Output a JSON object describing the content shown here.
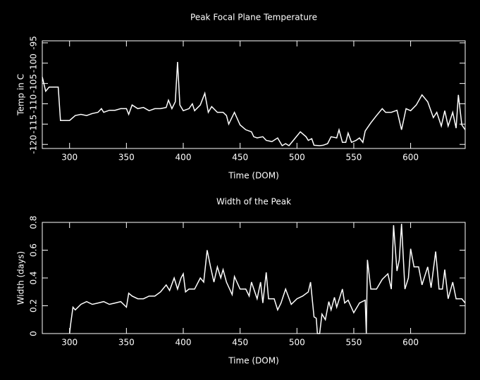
{
  "chart_data": [
    {
      "type": "line",
      "title": "Peak Focal Plane Temperature",
      "x_label": "Time (DOM)",
      "y_label": "Temp in C",
      "xlim": [
        276,
        648
      ],
      "ylim": [
        -121,
        -94.5
      ],
      "xticks": [
        300,
        350,
        400,
        450,
        500,
        550,
        600
      ],
      "yticks": [
        -120,
        -115,
        -110,
        -105,
        -100,
        -95
      ],
      "series": [
        {
          "color": "#ffffff",
          "x": [
            276,
            279,
            282,
            290,
            292,
            300,
            305,
            310,
            315,
            320,
            325,
            328,
            330,
            335,
            340,
            345,
            350,
            352,
            355,
            360,
            365,
            370,
            375,
            380,
            385,
            387,
            390,
            393,
            395,
            397,
            400,
            405,
            408,
            410,
            415,
            419,
            422,
            425,
            430,
            435,
            438,
            440,
            445,
            450,
            455,
            460,
            462,
            465,
            470,
            473,
            478,
            483,
            487,
            490,
            493,
            498,
            503,
            508,
            510,
            513,
            515,
            520,
            523,
            527,
            530,
            535,
            537,
            540,
            543,
            545,
            548,
            552,
            555,
            558,
            560,
            565,
            570,
            575,
            578,
            583,
            588,
            592,
            596,
            600,
            605,
            610,
            615,
            620,
            623,
            627,
            630,
            633,
            637,
            640,
            642,
            645,
            648
          ],
          "values": [
            -103.4,
            -106.9,
            -105.9,
            -105.9,
            -114.1,
            -114.1,
            -112.9,
            -112.6,
            -112.9,
            -112.4,
            -112.1,
            -111.2,
            -112.1,
            -111.6,
            -111.6,
            -111.2,
            -111.2,
            -112.6,
            -110.3,
            -111.2,
            -110.9,
            -111.7,
            -111.2,
            -111.2,
            -110.9,
            -109.1,
            -111.2,
            -109.5,
            -99.7,
            -110.3,
            -111.7,
            -111.2,
            -110.0,
            -111.7,
            -110.3,
            -107.4,
            -112.1,
            -110.7,
            -112.1,
            -112.1,
            -112.9,
            -115.0,
            -112.1,
            -115.2,
            -116.4,
            -116.9,
            -118.1,
            -118.4,
            -118.1,
            -119.0,
            -119.3,
            -118.4,
            -120.3,
            -119.8,
            -120.3,
            -118.6,
            -116.9,
            -118.1,
            -119.0,
            -118.6,
            -120.2,
            -120.3,
            -120.2,
            -119.8,
            -118.1,
            -118.4,
            -116.4,
            -119.5,
            -119.5,
            -117.2,
            -119.5,
            -119.0,
            -118.4,
            -119.5,
            -116.7,
            -114.7,
            -112.9,
            -111.2,
            -112.1,
            -112.1,
            -111.6,
            -116.4,
            -111.2,
            -111.7,
            -110.3,
            -107.8,
            -109.5,
            -113.4,
            -112.1,
            -115.5,
            -111.7,
            -115.5,
            -112.1,
            -116.0,
            -107.8,
            -115.2,
            -116.4
          ]
        }
      ]
    },
    {
      "type": "line",
      "title": "Width of the Peak",
      "x_label": "Time (DOM)",
      "y_label": "Width (days)",
      "xlim": [
        276,
        648
      ],
      "ylim": [
        0,
        0.8
      ],
      "xticks": [
        300,
        350,
        400,
        450,
        500,
        550,
        600
      ],
      "yticks": [
        0,
        0.2,
        0.4,
        0.6,
        0.8
      ],
      "series": [
        {
          "color": "#ffffff",
          "x": [
            300,
            301,
            303,
            305,
            310,
            315,
            320,
            325,
            330,
            335,
            340,
            345,
            350,
            352,
            355,
            360,
            365,
            370,
            375,
            380,
            385,
            388,
            392,
            395,
            398,
            400,
            402,
            405,
            410,
            415,
            418,
            421,
            424,
            427,
            430,
            433,
            435,
            438,
            443,
            445,
            450,
            455,
            458,
            460,
            465,
            468,
            470,
            473,
            475,
            480,
            483,
            486,
            490,
            495,
            500,
            505,
            510,
            512,
            515,
            517,
            518,
            520,
            522,
            525,
            528,
            530,
            533,
            535,
            540,
            542,
            545,
            550,
            555,
            560,
            561,
            562,
            565,
            570,
            575,
            580,
            583,
            585,
            588,
            590,
            592,
            595,
            598,
            600,
            603,
            607,
            610,
            615,
            618,
            622,
            625,
            628,
            630,
            633,
            637,
            640,
            645,
            648
          ],
          "values": [
            0,
            0.07,
            0.19,
            0.17,
            0.21,
            0.23,
            0.21,
            0.22,
            0.23,
            0.21,
            0.22,
            0.23,
            0.19,
            0.29,
            0.27,
            0.25,
            0.25,
            0.27,
            0.27,
            0.3,
            0.35,
            0.31,
            0.4,
            0.32,
            0.4,
            0.43,
            0.3,
            0.32,
            0.32,
            0.4,
            0.37,
            0.6,
            0.48,
            0.37,
            0.48,
            0.4,
            0.46,
            0.37,
            0.28,
            0.41,
            0.32,
            0.32,
            0.27,
            0.37,
            0.25,
            0.37,
            0.22,
            0.44,
            0.25,
            0.25,
            0.17,
            0.22,
            0.32,
            0.21,
            0.25,
            0.27,
            0.3,
            0.37,
            0.12,
            0.11,
            0,
            0,
            0.14,
            0.1,
            0.23,
            0.17,
            0.26,
            0.19,
            0.32,
            0.22,
            0.24,
            0.15,
            0.22,
            0.24,
            0,
            0.53,
            0.32,
            0.32,
            0.39,
            0.43,
            0.32,
            0.78,
            0.45,
            0.53,
            0.79,
            0.32,
            0.4,
            0.61,
            0.48,
            0.48,
            0.35,
            0.48,
            0.33,
            0.59,
            0.32,
            0.32,
            0.46,
            0.25,
            0.37,
            0.25,
            0.25,
            0.22
          ]
        }
      ]
    }
  ]
}
